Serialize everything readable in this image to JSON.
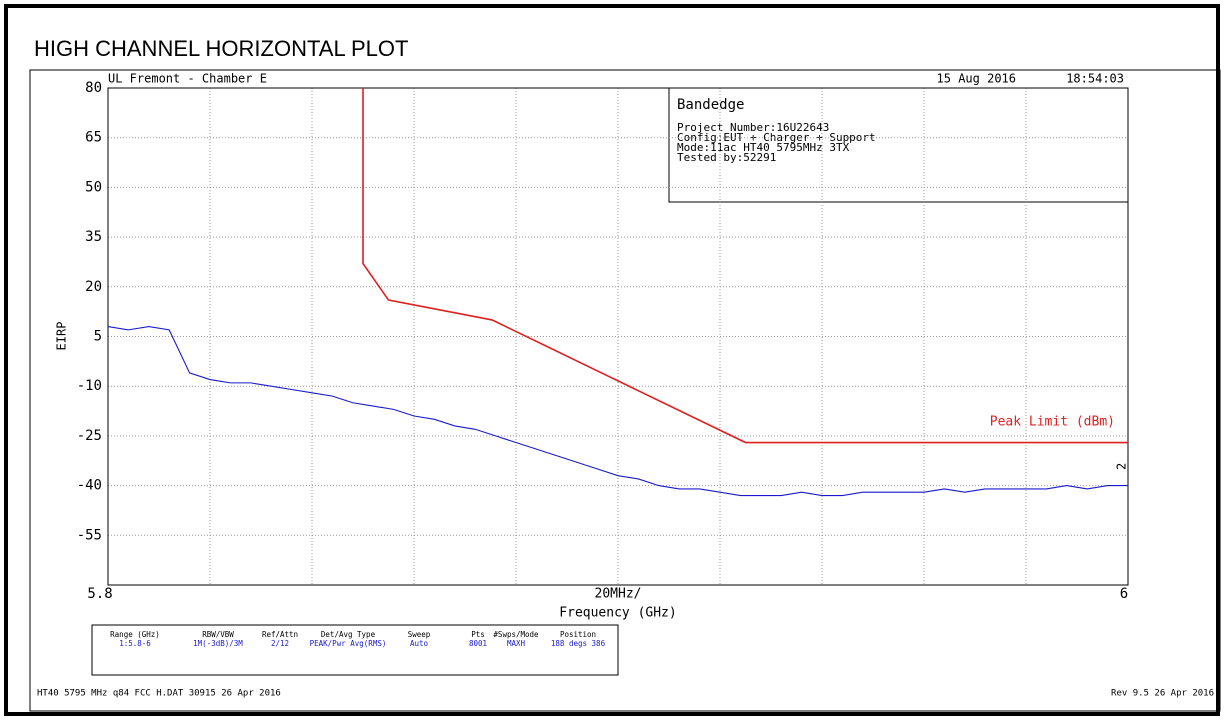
{
  "chart_data": {
    "type": "line",
    "title": "HIGH CHANNEL HORIZONTAL PLOT",
    "header_left": "UL Fremont - Chamber E",
    "header_date": "15 Aug 2016",
    "header_time": "18:54:03",
    "ylabel": "EIRP",
    "xlabel": "Frequency (GHz)",
    "x_scale_label": "20MHz/",
    "x_divisions": 10,
    "grid": true,
    "xlim": [
      5.8,
      6.0
    ],
    "xticks": [
      5.8,
      6
    ],
    "ylim": [
      -70,
      80
    ],
    "yticks": [
      80,
      65,
      50,
      35,
      20,
      5,
      -10,
      -25,
      -40,
      -55
    ],
    "info_box": {
      "title": "Bandedge",
      "lines": [
        "Project Number:16U22643",
        "Config:EUT + Charger + Support",
        "Mode:11ac HT40 5795MHz 3TX",
        "Tested by:52291"
      ]
    },
    "trace_marker": "2",
    "series": [
      {
        "name": "Peak Limit (dBm)",
        "color": "#e02020",
        "x": [
          5.85,
          5.85,
          5.855,
          5.8753,
          5.925,
          6.0
        ],
        "values": [
          80,
          27,
          16,
          10,
          -27,
          -27
        ]
      },
      {
        "color": "#1a1acc",
        "x": [
          5.8,
          5.804,
          5.808,
          5.812,
          5.816,
          5.82,
          5.824,
          5.828,
          5.832,
          5.836,
          5.84,
          5.844,
          5.848,
          5.852,
          5.856,
          5.86,
          5.864,
          5.868,
          5.872,
          5.876,
          5.88,
          5.884,
          5.888,
          5.892,
          5.896,
          5.9,
          5.904,
          5.908,
          5.912,
          5.916,
          5.92,
          5.924,
          5.928,
          5.932,
          5.936,
          5.94,
          5.944,
          5.948,
          5.952,
          5.956,
          5.96,
          5.964,
          5.968,
          5.972,
          5.976,
          5.98,
          5.984,
          5.988,
          5.992,
          5.996,
          6.0
        ],
        "values": [
          8,
          7,
          8,
          7,
          -6,
          -8,
          -9,
          -9,
          -10,
          -11,
          -12,
          -13,
          -15,
          -16,
          -17,
          -19,
          -20,
          -22,
          -23,
          -25,
          -27,
          -29,
          -31,
          -33,
          -35,
          -37,
          -38,
          -40,
          -41,
          -41,
          -42,
          -43,
          -43,
          -43,
          -42,
          -43,
          -43,
          -42,
          -42,
          -42,
          -42,
          -41,
          -42,
          -41,
          -41,
          -41,
          -41,
          -40,
          -41,
          -40,
          -40
        ]
      }
    ],
    "settings_table": {
      "headers": [
        "Range (GHz)",
        "RBW/VBW",
        "Ref/Attn",
        "Det/Avg Type",
        "Sweep",
        "Pts",
        "#Swps/Mode",
        "Position"
      ],
      "row": [
        "1:5.8-6",
        "1M(-3dB)/3M",
        "2/12",
        "PEAK/Pwr Avg(RMS)",
        "Auto",
        "8001",
        "MAXH",
        "188 degs 386"
      ]
    },
    "footer_left": "HT40 5795 MHz q84 FCC H.DAT 30915 26 Apr 2016",
    "footer_right": "Rev 9.5 26 Apr 2016"
  }
}
